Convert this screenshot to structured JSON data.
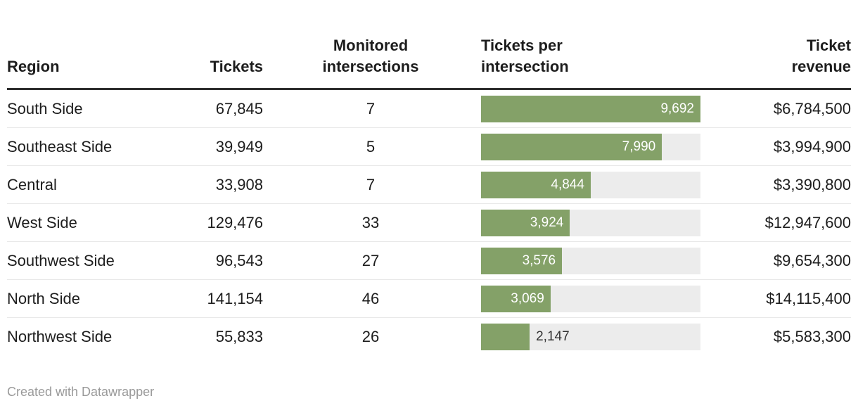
{
  "colors": {
    "bar_green": "#84a168",
    "bar_track": "#ececec",
    "text": "#1d1d1d",
    "header_rule": "#2e2e2e",
    "row_divider": "#e8e8e8",
    "footer_text": "#9a9a9a",
    "bar_label_inside": "#ffffff",
    "bar_label_outside": "#333333"
  },
  "header": {
    "region_label": "Region",
    "tickets_label": "Tickets",
    "monitored_label": "Monitored\nintersections",
    "per_intersection_label": "Tickets per\nintersection",
    "revenue_label": "Ticket\nrevenue"
  },
  "chart_data": {
    "type": "table",
    "title": "",
    "columns": [
      "Region",
      "Tickets",
      "Monitored intersections",
      "Tickets per intersection",
      "Ticket revenue"
    ],
    "bar_column": {
      "name": "Tickets per intersection",
      "style": "bar",
      "max": 9692,
      "min": 0
    },
    "rows": [
      {
        "region": "South Side",
        "tickets": "67,845",
        "monitored": "7",
        "per_intersection": 9692,
        "per_intersection_label": "9,692",
        "revenue": "$6,784,500"
      },
      {
        "region": "Southeast Side",
        "tickets": "39,949",
        "monitored": "5",
        "per_intersection": 7990,
        "per_intersection_label": "7,990",
        "revenue": "$3,994,900"
      },
      {
        "region": "Central",
        "tickets": "33,908",
        "monitored": "7",
        "per_intersection": 4844,
        "per_intersection_label": "4,844",
        "revenue": "$3,390,800"
      },
      {
        "region": "West Side",
        "tickets": "129,476",
        "monitored": "33",
        "per_intersection": 3924,
        "per_intersection_label": "3,924",
        "revenue": "$12,947,600"
      },
      {
        "region": "Southwest Side",
        "tickets": "96,543",
        "monitored": "27",
        "per_intersection": 3576,
        "per_intersection_label": "3,576",
        "revenue": "$9,654,300"
      },
      {
        "region": "North Side",
        "tickets": "141,154",
        "monitored": "46",
        "per_intersection": 3069,
        "per_intersection_label": "3,069",
        "revenue": "$14,115,400"
      },
      {
        "region": "Northwest Side",
        "tickets": "55,833",
        "monitored": "26",
        "per_intersection": 2147,
        "per_intersection_label": "2,147",
        "revenue": "$5,583,300"
      }
    ]
  },
  "footer": {
    "credit": "Created with Datawrapper"
  }
}
